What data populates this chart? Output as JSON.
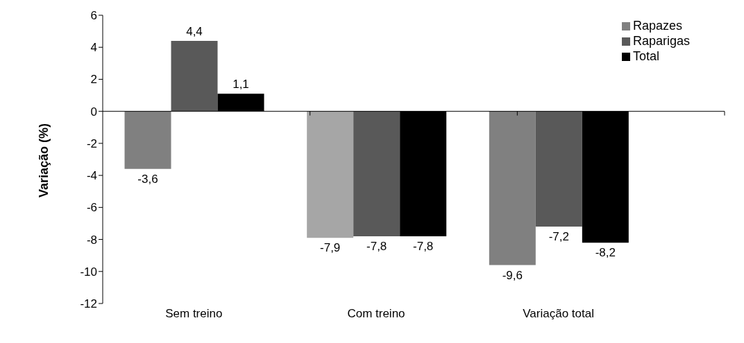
{
  "chart_data": {
    "type": "bar",
    "ylabel": "Variação (%)",
    "categories": [
      "Sem treino",
      "Com treino",
      "Variação total"
    ],
    "series": [
      {
        "name": "Rapazes",
        "color": "#808080",
        "colors": [
          "#808080",
          "#a6a6a6",
          "#808080"
        ],
        "values": [
          -3.6,
          -7.9,
          -9.6
        ],
        "value_labels": [
          "-3,6",
          "-7,9",
          "-9,6"
        ]
      },
      {
        "name": "Raparigas",
        "color": "#595959",
        "colors": [
          "#595959",
          "#595959",
          "#595959"
        ],
        "values": [
          4.4,
          -7.8,
          -7.2
        ],
        "value_labels": [
          "4,4",
          "-7,8",
          "-7,2"
        ]
      },
      {
        "name": "Total",
        "color": "#000000",
        "colors": [
          "#000000",
          "#000000",
          "#000000"
        ],
        "values": [
          1.1,
          -7.8,
          -8.2
        ],
        "value_labels": [
          "1,1",
          "-7,8",
          "-8,2"
        ]
      }
    ],
    "ylim": [
      -12,
      6
    ],
    "yticks": [
      -12,
      -10,
      -8,
      -6,
      -4,
      -2,
      0,
      2,
      4,
      6
    ],
    "legend": "top right"
  }
}
